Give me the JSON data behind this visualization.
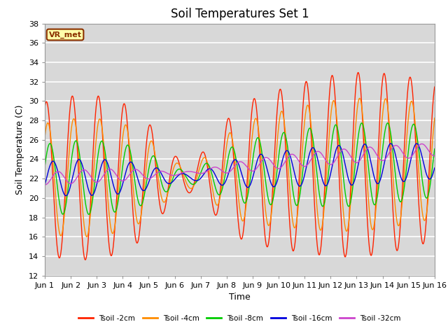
{
  "title": "Soil Temperatures Set 1",
  "xlabel": "Time",
  "ylabel": "Soil Temperature (C)",
  "ylim": [
    12,
    38
  ],
  "xlim": [
    0,
    15
  ],
  "xtick_labels": [
    "Jun 1",
    "Jun 2",
    "Jun 3",
    "Jun 4",
    "Jun 5",
    "Jun 6",
    "Jun 7",
    "Jun 8",
    "Jun 9",
    "Jun 10",
    "Jun 11",
    "Jun 12",
    "Jun 13",
    "Jun 14",
    "Jun 15",
    "Jun 16"
  ],
  "ytick_values": [
    12,
    14,
    16,
    18,
    20,
    22,
    24,
    26,
    28,
    30,
    32,
    34,
    36,
    38
  ],
  "series_colors": [
    "#ff2200",
    "#ff8c00",
    "#00cc00",
    "#0000dd",
    "#cc44cc"
  ],
  "series_labels": [
    "Tsoil -2cm",
    "Tsoil -4cm",
    "Tsoil -8cm",
    "Tsoil -16cm",
    "Tsoil -32cm"
  ],
  "vr_met_label": "VR_met",
  "plot_bg_color": "#d8d8d8",
  "fig_bg_color": "#ffffff",
  "title_fontsize": 12,
  "label_fontsize": 9,
  "tick_fontsize": 8
}
